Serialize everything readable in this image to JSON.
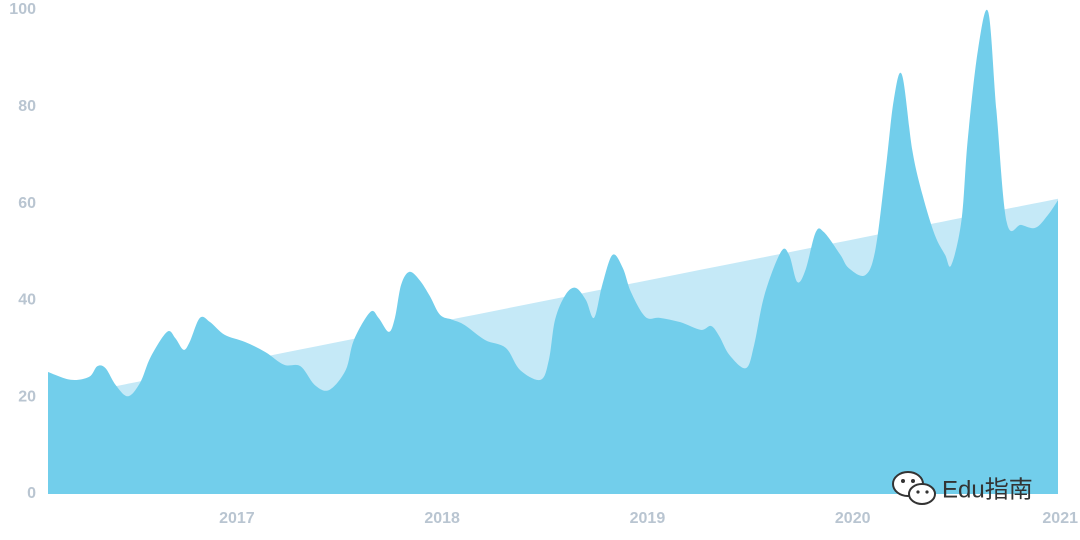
{
  "chart_data": {
    "type": "area",
    "xlim": [
      2016.08,
      2021
    ],
    "xticks": [
      2017,
      2018,
      2019,
      2020,
      2021
    ],
    "ylim": [
      0,
      100
    ],
    "yticks": [
      0,
      20,
      40,
      60,
      80,
      100
    ],
    "grid": false,
    "series": [
      {
        "color": "#c5e9f7",
        "x": [
          2016.08,
          2021.0
        ],
        "values": [
          19.5,
          61
        ]
      },
      {
        "color": "#72ceeb",
        "x": [
          2016.08,
          2016.19,
          2016.28,
          2016.32,
          2016.36,
          2016.41,
          2016.47,
          2016.53,
          2016.58,
          2016.66,
          2016.7,
          2016.74,
          2016.77,
          2016.82,
          2016.87,
          2016.94,
          2017.04,
          2017.14,
          2017.23,
          2017.31,
          2017.38,
          2017.45,
          2017.53,
          2017.57,
          2017.65,
          2017.69,
          2017.74,
          2017.77,
          2017.8,
          2017.84,
          2017.89,
          2017.94,
          2017.99,
          2018.05,
          2018.11,
          2018.21,
          2018.31,
          2018.38,
          2018.48,
          2018.52,
          2018.55,
          2018.6,
          2018.65,
          2018.7,
          2018.74,
          2018.78,
          2018.83,
          2018.88,
          2018.92,
          2018.99,
          2019.06,
          2019.16,
          2019.26,
          2019.31,
          2019.35,
          2019.4,
          2019.48,
          2019.52,
          2019.57,
          2019.65,
          2019.69,
          2019.73,
          2019.77,
          2019.82,
          2019.86,
          2019.94,
          2019.98,
          2020.06,
          2020.11,
          2020.16,
          2020.2,
          2020.24,
          2020.29,
          2020.34,
          2020.4,
          2020.45,
          2020.48,
          2020.53,
          2020.56,
          2020.61,
          2020.66,
          2020.7,
          2020.75,
          2020.82,
          2020.89,
          2020.95,
          2021.0
        ],
        "values": [
          25.2,
          23.6,
          24.2,
          26.4,
          26,
          22.5,
          20.2,
          23.1,
          28.3,
          33.5,
          32.2,
          29.8,
          31.4,
          36.4,
          35.5,
          32.9,
          31.4,
          29.3,
          26.7,
          26.4,
          22.5,
          21.5,
          25.6,
          31.8,
          37.6,
          36.4,
          33.5,
          36.4,
          43.2,
          45.9,
          44.2,
          40.9,
          37,
          36,
          34.9,
          31.8,
          30.2,
          25.6,
          23.6,
          27.7,
          36,
          41.1,
          42.6,
          40.1,
          36.4,
          43.2,
          49.4,
          46.7,
          41.7,
          36.6,
          36.4,
          35.5,
          33.9,
          34.7,
          32.6,
          28.7,
          26,
          30.8,
          41.1,
          50,
          49.4,
          43.8,
          46.3,
          54.1,
          54.1,
          49.4,
          46.7,
          45.2,
          50.4,
          66.9,
          81.4,
          86.6,
          71.1,
          61.8,
          53.5,
          49.4,
          47.3,
          56.6,
          73.1,
          91.7,
          99.6,
          79.3,
          56.2,
          55.6,
          55,
          57.6,
          60.7
        ]
      }
    ]
  },
  "watermark": "Edu指南"
}
